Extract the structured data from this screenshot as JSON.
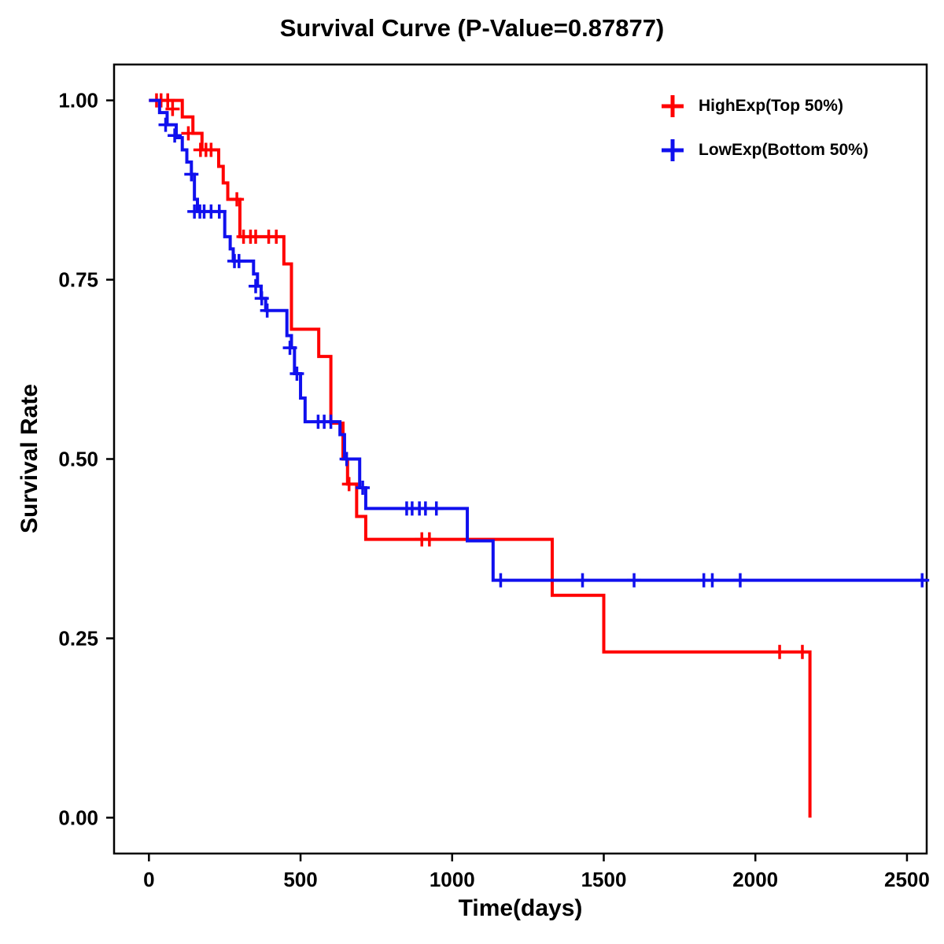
{
  "title": "Survival Curve (P-Value=0.87877)",
  "chart_data": {
    "type": "line",
    "subtype": "kaplan-meier-step",
    "title": "Survival Curve (P-Value=0.87877)",
    "xlabel": "Time(days)",
    "ylabel": "Survival Rate",
    "xlim": [
      -115,
      2565
    ],
    "ylim": [
      -0.05,
      1.05
    ],
    "xticks": [
      0,
      500,
      1000,
      1500,
      2000,
      2500
    ],
    "xtick_labels": [
      "0",
      "500",
      "1000",
      "1500",
      "2000",
      "2500"
    ],
    "yticks": [
      0.0,
      0.25,
      0.5,
      0.75,
      1.0
    ],
    "ytick_labels": [
      "0.00",
      "0.25",
      "0.50",
      "0.75",
      "1.00"
    ],
    "grid": false,
    "legend_position": "top-right-inside",
    "series": [
      {
        "name": "HighExp(Top 50%)",
        "color": "#ff0000",
        "end_time": 2180,
        "steps": [
          [
            0,
            1.0
          ],
          [
            110,
            0.977
          ],
          [
            145,
            0.954
          ],
          [
            175,
            0.931
          ],
          [
            230,
            0.908
          ],
          [
            245,
            0.885
          ],
          [
            260,
            0.862
          ],
          [
            300,
            0.81
          ],
          [
            445,
            0.772
          ],
          [
            470,
            0.681
          ],
          [
            560,
            0.643
          ],
          [
            600,
            0.55
          ],
          [
            640,
            0.5
          ],
          [
            655,
            0.465
          ],
          [
            685,
            0.42
          ],
          [
            715,
            0.388
          ],
          [
            1330,
            0.31
          ],
          [
            1500,
            0.231
          ],
          [
            2180,
            0.0
          ]
        ],
        "censors": [
          [
            25,
            1.0
          ],
          [
            40,
            1.0
          ],
          [
            62,
            1.0
          ],
          [
            78,
            0.988
          ],
          [
            130,
            0.954
          ],
          [
            170,
            0.931
          ],
          [
            188,
            0.931
          ],
          [
            205,
            0.931
          ],
          [
            290,
            0.862
          ],
          [
            312,
            0.81
          ],
          [
            335,
            0.81
          ],
          [
            352,
            0.81
          ],
          [
            395,
            0.81
          ],
          [
            420,
            0.81
          ],
          [
            660,
            0.465
          ],
          [
            900,
            0.388
          ],
          [
            925,
            0.388
          ],
          [
            2080,
            0.231
          ],
          [
            2155,
            0.231
          ]
        ]
      },
      {
        "name": "LowExp(Bottom 50%)",
        "color": "#1010ee",
        "end_time": 2565,
        "steps": [
          [
            0,
            1.0
          ],
          [
            35,
            0.983
          ],
          [
            60,
            0.966
          ],
          [
            90,
            0.948
          ],
          [
            110,
            0.931
          ],
          [
            125,
            0.914
          ],
          [
            140,
            0.897
          ],
          [
            150,
            0.862
          ],
          [
            160,
            0.845
          ],
          [
            250,
            0.81
          ],
          [
            268,
            0.793
          ],
          [
            278,
            0.776
          ],
          [
            345,
            0.758
          ],
          [
            358,
            0.741
          ],
          [
            370,
            0.724
          ],
          [
            385,
            0.707
          ],
          [
            455,
            0.672
          ],
          [
            470,
            0.655
          ],
          [
            480,
            0.619
          ],
          [
            500,
            0.585
          ],
          [
            515,
            0.552
          ],
          [
            630,
            0.534
          ],
          [
            645,
            0.5
          ],
          [
            695,
            0.46
          ],
          [
            715,
            0.431
          ],
          [
            1050,
            0.386
          ],
          [
            1135,
            0.331
          ]
        ],
        "censors": [
          [
            55,
            0.966
          ],
          [
            85,
            0.951
          ],
          [
            140,
            0.897
          ],
          [
            150,
            0.845
          ],
          [
            168,
            0.845
          ],
          [
            182,
            0.845
          ],
          [
            205,
            0.845
          ],
          [
            232,
            0.845
          ],
          [
            282,
            0.776
          ],
          [
            297,
            0.776
          ],
          [
            352,
            0.741
          ],
          [
            372,
            0.724
          ],
          [
            390,
            0.707
          ],
          [
            465,
            0.655
          ],
          [
            488,
            0.619
          ],
          [
            558,
            0.552
          ],
          [
            578,
            0.552
          ],
          [
            600,
            0.552
          ],
          [
            652,
            0.5
          ],
          [
            705,
            0.46
          ],
          [
            850,
            0.431
          ],
          [
            868,
            0.431
          ],
          [
            892,
            0.431
          ],
          [
            912,
            0.431
          ],
          [
            948,
            0.431
          ],
          [
            1160,
            0.331
          ],
          [
            1430,
            0.331
          ],
          [
            1600,
            0.331
          ],
          [
            1830,
            0.331
          ],
          [
            1858,
            0.331
          ],
          [
            1950,
            0.331
          ],
          [
            2550,
            0.331
          ]
        ]
      }
    ]
  }
}
